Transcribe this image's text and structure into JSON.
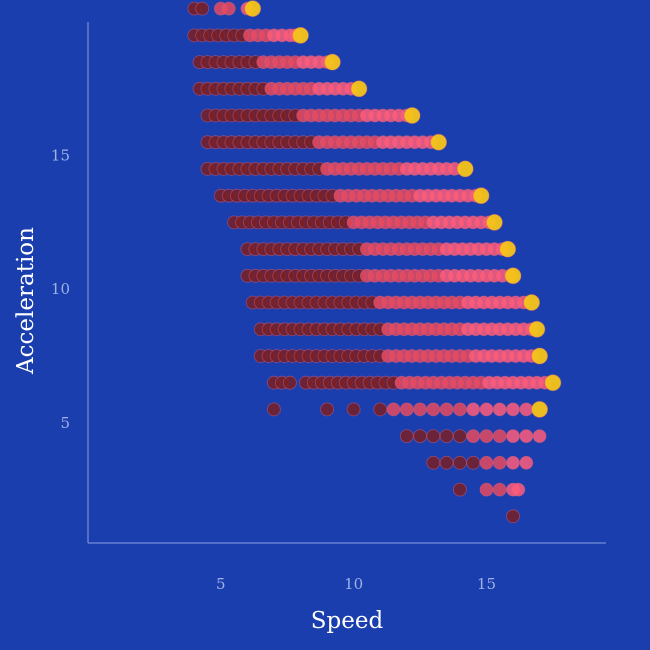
{
  "chart_data": {
    "type": "scatter",
    "title": "",
    "xlabel": "Speed",
    "ylabel": "Acceleration",
    "xlim": [
      0,
      19.5
    ],
    "ylim": [
      0.5,
      20
    ],
    "xticks": [
      5,
      10,
      15
    ],
    "yticks": [
      5,
      10,
      15
    ],
    "grid": false,
    "legend": "none",
    "colors": {
      "background": "#1a3eae",
      "axis": "#8aa0e0",
      "low": "#7a1f24",
      "mid": "#e84a5f",
      "high": "#ff5c7a",
      "max": "#f5c518"
    },
    "rows": [
      {
        "y": 19,
        "x": [
          4,
          4.3,
          5,
          5.3,
          6,
          6.2
        ]
      },
      {
        "y": 18,
        "x": [
          4,
          4.3,
          4.6,
          4.9,
          5.2,
          5.5,
          5.8,
          6.1,
          6.4,
          6.7,
          7,
          7.3,
          7.6,
          7.8,
          8
        ]
      },
      {
        "y": 17,
        "x": [
          4.2,
          4.5,
          4.8,
          5.1,
          5.4,
          5.7,
          6,
          6.3,
          6.6,
          6.9,
          7.2,
          7.5,
          7.8,
          8.1,
          8.4,
          8.7,
          9,
          9.2
        ]
      },
      {
        "y": 16,
        "x": [
          4.2,
          4.5,
          4.8,
          5.1,
          5.4,
          5.7,
          6,
          6.3,
          6.6,
          6.9,
          7.2,
          7.5,
          7.8,
          8.1,
          8.4,
          8.7,
          9,
          9.3,
          9.6,
          9.9,
          10.2
        ]
      },
      {
        "y": 15,
        "x": [
          4.5,
          4.8,
          5.1,
          5.4,
          5.7,
          6,
          6.3,
          6.6,
          6.9,
          7.2,
          7.5,
          7.8,
          8.1,
          8.4,
          8.7,
          9,
          9.3,
          9.6,
          9.9,
          10.2,
          10.5,
          10.8,
          11.1,
          11.4,
          11.7,
          12,
          12.2
        ]
      },
      {
        "y": 14,
        "x": [
          4.5,
          4.8,
          5.1,
          5.4,
          5.7,
          6,
          6.3,
          6.6,
          6.9,
          7.2,
          7.5,
          7.8,
          8.1,
          8.4,
          8.7,
          9,
          9.3,
          9.6,
          9.9,
          10.2,
          10.5,
          10.8,
          11.1,
          11.4,
          11.7,
          12,
          12.3,
          12.6,
          12.9,
          13.2
        ]
      },
      {
        "y": 13,
        "x": [
          4.5,
          4.8,
          5.1,
          5.4,
          5.7,
          6,
          6.3,
          6.6,
          6.9,
          7.2,
          7.5,
          7.8,
          8.1,
          8.4,
          8.7,
          9,
          9.3,
          9.6,
          9.9,
          10.2,
          10.5,
          10.8,
          11.1,
          11.4,
          11.7,
          12,
          12.3,
          12.6,
          12.9,
          13.2,
          13.5,
          13.8,
          14.2
        ]
      },
      {
        "y": 12,
        "x": [
          5,
          5.3,
          5.6,
          5.9,
          6.2,
          6.5,
          6.8,
          7.1,
          7.4,
          7.7,
          8,
          8.3,
          8.6,
          8.9,
          9.2,
          9.5,
          9.8,
          10.1,
          10.4,
          10.7,
          11,
          11.3,
          11.6,
          11.9,
          12.2,
          12.5,
          12.8,
          13.1,
          13.4,
          13.7,
          14,
          14.3,
          14.6,
          14.8
        ]
      },
      {
        "y": 11,
        "x": [
          5.5,
          5.8,
          6.1,
          6.4,
          6.7,
          7,
          7.3,
          7.6,
          7.9,
          8.2,
          8.5,
          8.8,
          9.1,
          9.4,
          9.7,
          10,
          10.3,
          10.6,
          10.9,
          11.2,
          11.5,
          11.8,
          12.1,
          12.4,
          12.7,
          13,
          13.3,
          13.6,
          13.9,
          14.2,
          14.5,
          14.8,
          15.1,
          15.3
        ]
      },
      {
        "y": 10,
        "x": [
          6,
          6.3,
          6.6,
          6.9,
          7.2,
          7.5,
          7.8,
          8.1,
          8.4,
          8.7,
          9,
          9.3,
          9.6,
          9.9,
          10.2,
          10.5,
          10.8,
          11.1,
          11.4,
          11.7,
          12,
          12.3,
          12.6,
          12.9,
          13.2,
          13.5,
          13.8,
          14.1,
          14.4,
          14.7,
          15,
          15.3,
          15.6,
          15.8
        ]
      },
      {
        "y": 9,
        "x": [
          6,
          6.3,
          6.6,
          6.9,
          7.2,
          7.5,
          7.8,
          8.1,
          8.4,
          8.7,
          9,
          9.3,
          9.6,
          9.9,
          10.2,
          10.5,
          10.8,
          11.1,
          11.4,
          11.7,
          12,
          12.3,
          12.6,
          12.9,
          13.2,
          13.5,
          13.8,
          14.1,
          14.4,
          14.7,
          15,
          15.3,
          15.6,
          15.9,
          16
        ]
      },
      {
        "y": 8,
        "x": [
          6.2,
          6.5,
          6.8,
          7.1,
          7.4,
          7.7,
          8,
          8.3,
          8.6,
          8.9,
          9.2,
          9.5,
          9.8,
          10.1,
          10.4,
          10.7,
          11,
          11.3,
          11.6,
          11.9,
          12.2,
          12.5,
          12.8,
          13.1,
          13.4,
          13.7,
          14,
          14.3,
          14.6,
          14.9,
          15.2,
          15.5,
          15.8,
          16.1,
          16.4,
          16.7
        ]
      },
      {
        "y": 7,
        "x": [
          6.5,
          6.8,
          7.1,
          7.4,
          7.7,
          8,
          8.3,
          8.6,
          8.9,
          9.2,
          9.5,
          9.8,
          10.1,
          10.4,
          10.7,
          11,
          11.3,
          11.6,
          11.9,
          12.2,
          12.5,
          12.8,
          13.1,
          13.4,
          13.7,
          14,
          14.3,
          14.6,
          14.9,
          15.2,
          15.5,
          15.8,
          16.1,
          16.4,
          16.7,
          16.9
        ]
      },
      {
        "y": 6,
        "x": [
          6.5,
          6.8,
          7.1,
          7.4,
          7.7,
          8,
          8.3,
          8.6,
          8.9,
          9.2,
          9.5,
          9.8,
          10.1,
          10.4,
          10.7,
          11,
          11.3,
          11.6,
          11.9,
          12.2,
          12.5,
          12.8,
          13.1,
          13.4,
          13.7,
          14,
          14.3,
          14.6,
          14.9,
          15.2,
          15.5,
          15.8,
          16.1,
          16.4,
          16.7,
          17
        ]
      },
      {
        "y": 5,
        "x": [
          7,
          7.3,
          7.6,
          8.2,
          8.5,
          8.8,
          9.1,
          9.4,
          9.7,
          10,
          10.3,
          10.6,
          10.9,
          11.2,
          11.5,
          11.8,
          12.1,
          12.4,
          12.7,
          13,
          13.3,
          13.6,
          13.9,
          14.2,
          14.5,
          14.8,
          15.1,
          15.4,
          15.7,
          16,
          16.3,
          16.6,
          16.9,
          17.2,
          17.5
        ]
      },
      {
        "y": 4,
        "x": [
          7,
          9,
          10,
          11,
          11.5,
          12,
          12.5,
          13,
          13.5,
          14,
          14.5,
          15,
          15.5,
          16,
          16.5,
          17
        ]
      },
      {
        "y": 3,
        "x": [
          12,
          12.5,
          13,
          13.5,
          14,
          14.5,
          15,
          15.5,
          16,
          16.5,
          17
        ]
      },
      {
        "y": 2,
        "x": [
          13,
          13.5,
          14,
          14.5,
          15,
          15.5,
          16,
          16.5
        ]
      },
      {
        "y": 1,
        "x": [
          14,
          15,
          15.5,
          16,
          16.2
        ]
      },
      {
        "y": 0,
        "x": [
          16
        ]
      }
    ]
  }
}
